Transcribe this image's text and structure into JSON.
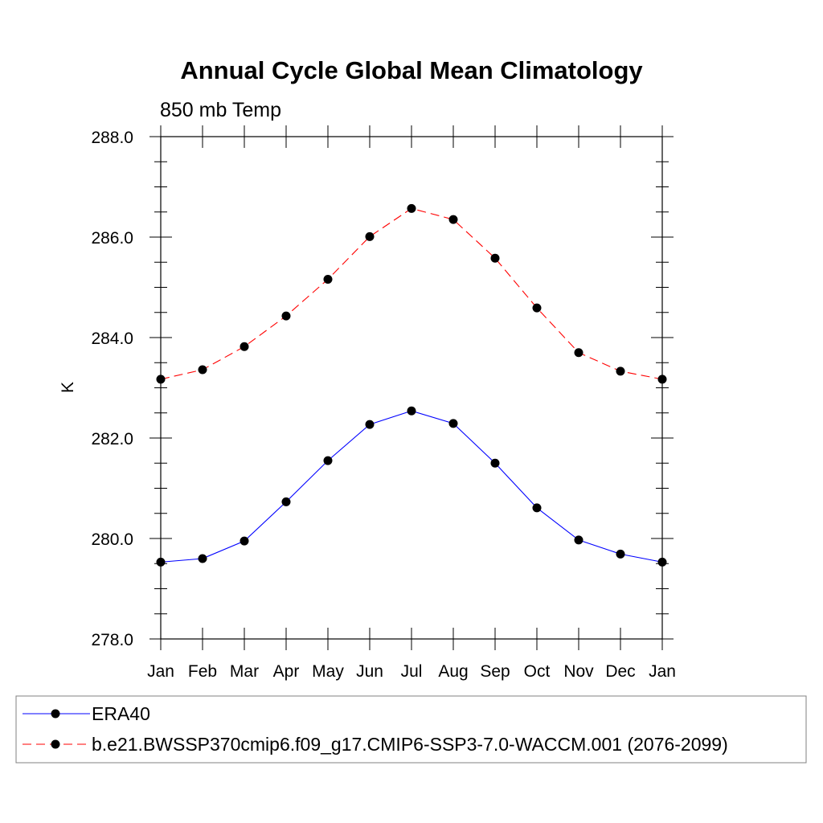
{
  "chart_data": {
    "type": "line",
    "title": "Annual Cycle Global Mean Climatology",
    "subtitle": "850 mb Temp",
    "xlabel": "",
    "ylabel": "K",
    "categories": [
      "Jan",
      "Feb",
      "Mar",
      "Apr",
      "May",
      "Jun",
      "Jul",
      "Aug",
      "Sep",
      "Oct",
      "Nov",
      "Dec",
      "Jan"
    ],
    "ylim": [
      278.0,
      288.0
    ],
    "yticks": [
      "278.0",
      "280.0",
      "282.0",
      "284.0",
      "286.0",
      "288.0"
    ],
    "grid": false,
    "legend_position": "bottom",
    "series": [
      {
        "name": "ERA40",
        "color": "#0000ff",
        "line_style": "solid",
        "marker": "filled-circle",
        "values": [
          279.53,
          279.6,
          279.95,
          280.73,
          281.55,
          282.27,
          282.54,
          282.29,
          281.5,
          280.61,
          279.97,
          279.69,
          279.53
        ]
      },
      {
        "name": "b.e21.BWSSP370cmip6.f09_g17.CMIP6-SSP3-7.0-WACCM.001 (2076-2099)",
        "color": "#ff0000",
        "line_style": "dashed",
        "marker": "filled-circle",
        "values": [
          283.17,
          283.36,
          283.82,
          284.43,
          285.16,
          286.01,
          286.57,
          286.35,
          285.58,
          284.59,
          283.7,
          283.33,
          283.17
        ]
      }
    ]
  }
}
